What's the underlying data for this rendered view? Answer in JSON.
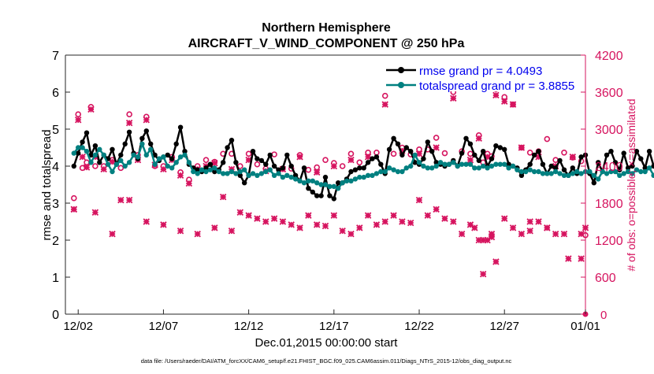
{
  "chart_data": {
    "type": "line",
    "title": "Northern Hemisphere",
    "subtitle": "AIRCRAFT_V_WIND_COMPONENT @ 250 hPa",
    "xlabel": "Dec.01,2015 00:00:00 start",
    "ylabel": "rmse and totalspread",
    "y2label": "# of obs: o=possible; ×=assimilated",
    "footnote": "data file: /Users/raeder/DAI/ATM_forcXX/CAM6_setup/f.e21.FHIST_BGC.f09_025.CAM6assim.011/Diags_NTrS_2015-12/obs_diag_output.nc",
    "xlim": [
      0.5,
      31.0
    ],
    "ylim": [
      0,
      7
    ],
    "y2lim": [
      0,
      4200
    ],
    "xticks": [
      1.25,
      6.25,
      11.25,
      16.25,
      21.25,
      26.25,
      31.0
    ],
    "xtick_labels": [
      "12/02",
      "12/07",
      "12/12",
      "12/17",
      "12/22",
      "12/27",
      "01/01"
    ],
    "yticks": [
      0,
      1,
      2,
      3,
      4,
      5,
      6,
      7
    ],
    "y2ticks": [
      0,
      600,
      1200,
      1800,
      2400,
      3000,
      3600,
      4200
    ],
    "series_x_start": 1.0,
    "series_x_step": 0.25,
    "series": [
      {
        "name": "rmse grand pr = 4.0493",
        "color": "#000000",
        "axis": "left",
        "values": [
          4.0,
          4.35,
          4.65,
          4.9,
          4.3,
          4.55,
          4.1,
          4.3,
          4.2,
          4.45,
          4.05,
          4.3,
          4.6,
          4.92,
          4.35,
          4.2,
          4.75,
          4.95,
          4.6,
          4.3,
          4.15,
          4.25,
          4.3,
          4.2,
          4.6,
          5.05,
          4.4,
          4.05,
          3.95,
          3.9,
          3.85,
          3.95,
          4.05,
          3.85,
          3.9,
          4.1,
          4.5,
          4.7,
          4.1,
          3.75,
          3.55,
          3.75,
          4.4,
          4.2,
          4.15,
          4.05,
          4.3,
          4.0,
          3.9,
          3.95,
          4.3,
          4.0,
          3.75,
          3.6,
          3.95,
          3.4,
          3.3,
          3.2,
          3.2,
          3.7,
          3.2,
          3.12,
          3.55,
          3.55,
          3.65,
          3.85,
          3.9,
          3.95,
          3.95,
          4.1,
          4.2,
          4.25,
          4.05,
          3.8,
          4.45,
          4.75,
          4.6,
          4.3,
          4.5,
          4.4,
          4.1,
          4.05,
          4.2,
          4.65,
          4.4,
          4.1,
          4.05,
          4.0,
          4.05,
          4.15,
          4.0,
          4.35,
          4.75,
          4.6,
          4.3,
          4.15,
          4.4,
          4.0,
          4.2,
          4.55,
          4.5,
          4.45,
          4.05,
          4.0,
          3.95,
          3.75,
          3.9,
          4.05,
          4.3,
          4.4,
          4.05,
          3.8,
          4.0,
          3.95,
          4.15,
          3.9,
          3.75,
          3.95,
          3.8,
          4.25,
          4.3,
          3.8,
          3.55,
          4.1,
          3.85,
          4.3,
          4.4,
          4.1,
          3.9,
          4.35,
          3.95,
          4.0,
          4.4,
          4.2,
          3.95,
          4.4,
          4.0,
          4.1,
          3.85
        ]
      },
      {
        "name": "totalspread grand pr = 3.8855",
        "color": "#008080",
        "axis": "left",
        "values": [
          4.35,
          4.5,
          4.5,
          4.4,
          4.1,
          4.3,
          4.45,
          4.3,
          4.05,
          3.85,
          4.05,
          4.15,
          4.0,
          4.1,
          4.3,
          4.25,
          4.6,
          4.3,
          4.45,
          4.05,
          4.2,
          4.25,
          4.0,
          3.95,
          4.1,
          4.25,
          4.3,
          4.1,
          3.85,
          3.8,
          3.9,
          3.85,
          3.9,
          3.95,
          3.85,
          3.8,
          3.8,
          3.85,
          3.8,
          3.85,
          3.9,
          3.75,
          3.8,
          3.75,
          3.8,
          3.85,
          3.9,
          3.75,
          3.8,
          3.7,
          3.75,
          3.7,
          3.65,
          3.6,
          3.55,
          3.6,
          3.6,
          3.55,
          3.5,
          3.5,
          3.45,
          3.45,
          3.4,
          3.55,
          3.6,
          3.6,
          3.65,
          3.7,
          3.7,
          3.75,
          3.75,
          3.8,
          3.85,
          3.85,
          3.95,
          3.9,
          3.85,
          3.85,
          3.95,
          4.0,
          4.3,
          4.1,
          4.0,
          3.95,
          3.95,
          4.0,
          4.1,
          4.05,
          4.05,
          4.1,
          4.0,
          4.05,
          4.05,
          4.05,
          3.95,
          3.95,
          4.0,
          3.95,
          4.0,
          4.05,
          4.05,
          4.05,
          3.95,
          4.0,
          3.9,
          3.85,
          3.85,
          3.9,
          3.85,
          3.85,
          3.8,
          3.8,
          3.8,
          3.85,
          3.8,
          3.75,
          3.75,
          3.8,
          3.85,
          3.8,
          3.85,
          3.85,
          3.75,
          3.65,
          3.85,
          3.8,
          3.85,
          3.85,
          3.75,
          3.8,
          3.85,
          3.8,
          3.9,
          3.85,
          3.85,
          3.95,
          3.75,
          3.85,
          3.9
        ]
      }
    ],
    "obs": {
      "color": "#d6145f",
      "axis": "right",
      "possible_x": [
        1.0,
        1.25,
        1.5,
        1.75,
        2.0,
        2.25,
        2.75,
        3.25,
        3.75,
        4.25,
        4.75,
        5.25,
        5.75,
        6.25,
        6.75,
        7.25,
        7.75,
        8.25,
        8.75,
        9.25,
        9.75,
        10.25,
        10.75,
        11.25,
        11.75,
        12.25,
        12.75,
        13.25,
        13.75,
        14.25,
        14.75,
        15.25,
        15.75,
        16.25,
        16.75,
        17.25,
        17.75,
        18.25,
        18.75,
        19.25,
        19.75,
        20.25,
        20.75,
        21.25,
        21.75,
        22.25,
        22.75,
        23.25,
        23.75,
        24.25,
        24.75,
        25.0,
        25.25,
        25.5,
        25.75,
        26.25,
        26.75,
        27.25,
        27.75,
        28.25,
        28.75,
        29.25,
        29.75,
        30.25,
        30.75,
        31.0
      ],
      "possible_y": [
        1880,
        3240,
        2370,
        2460,
        3360,
        2400,
        2400,
        2500,
        2370,
        3240,
        2580,
        3200,
        2400,
        2400,
        2550,
        2300,
        2180,
        2400,
        2500,
        2470,
        2600,
        2600,
        2400,
        2600,
        2430,
        2360,
        2590,
        2360,
        2360,
        2580,
        2340,
        2380,
        2500,
        2450,
        2400,
        2600,
        2460,
        2620,
        2620,
        3540,
        2600,
        2700,
        2590,
        2670,
        2670,
        2860,
        2610,
        3600,
        2640,
        2600,
        2900,
        2460,
        2600,
        2560,
        3650,
        3520,
        3400,
        2700,
        2620,
        2640,
        2840,
        2500,
        2620,
        2540,
        2480,
        1280
      ],
      "assim_x": [
        1.0,
        1.25,
        1.5,
        1.75,
        2.0,
        2.25,
        2.75,
        3.25,
        3.75,
        4.25,
        4.75,
        5.25,
        5.75,
        6.25,
        6.75,
        7.25,
        7.75,
        8.25,
        8.75,
        9.25,
        9.75,
        10.25,
        10.75,
        11.25,
        11.75,
        12.25,
        12.75,
        13.25,
        13.75,
        14.25,
        14.75,
        15.25,
        15.75,
        16.25,
        16.75,
        17.25,
        17.75,
        18.25,
        18.75,
        19.25,
        19.75,
        20.25,
        20.75,
        21.25,
        21.75,
        22.25,
        22.75,
        23.25,
        23.75,
        24.25,
        24.75,
        25.0,
        25.25,
        25.5,
        25.75,
        26.25,
        26.75,
        27.25,
        27.75,
        28.25,
        28.75,
        29.25,
        29.75,
        30.25,
        30.75,
        31.0
      ],
      "assim_y": [
        1700,
        3150,
        2550,
        2380,
        3320,
        2550,
        2350,
        2470,
        1850,
        3100,
        2500,
        3150,
        2420,
        2350,
        2500,
        2250,
        2120,
        2350,
        2400,
        2450,
        1900,
        2350,
        1650,
        2500,
        1550,
        2320,
        1550,
        2350,
        1450,
        2550,
        1600,
        2300,
        1430,
        2400,
        1350,
        2500,
        1400,
        2550,
        1450,
        3400,
        1600,
        2650,
        1480,
        2600,
        1600,
        2700,
        1550,
        3500,
        1300,
        2500,
        2850,
        1200,
        2550,
        1300,
        3550,
        3450,
        3400,
        2700,
        1500,
        2550,
        1400,
        2400,
        1300,
        2550,
        900,
        1400
      ],
      "low_x": [
        1.0,
        2.25,
        3.25,
        4.25,
        5.25,
        6.25,
        7.25,
        8.25,
        9.25,
        10.25,
        11.25,
        12.25,
        13.25,
        14.25,
        15.25,
        16.25,
        17.25,
        18.25,
        19.25,
        20.25,
        21.25,
        22.25,
        23.25,
        24.25,
        24.5,
        24.75,
        25.0,
        25.25,
        25.5,
        25.75,
        26.25,
        26.75,
        27.25,
        27.75,
        28.25,
        28.75,
        29.25,
        30.0,
        30.75
      ],
      "low_y": [
        1700,
        1650,
        1300,
        1850,
        1500,
        1450,
        1350,
        1300,
        1400,
        1350,
        1600,
        1500,
        1500,
        1400,
        1450,
        1600,
        1300,
        1600,
        1500,
        1500,
        1850,
        1700,
        1500,
        1450,
        1400,
        1200,
        650,
        1200,
        1250,
        850,
        1550,
        1400,
        1300,
        1350,
        1500,
        1400,
        1300,
        900,
        1300
      ],
      "zero_label": "0"
    }
  }
}
